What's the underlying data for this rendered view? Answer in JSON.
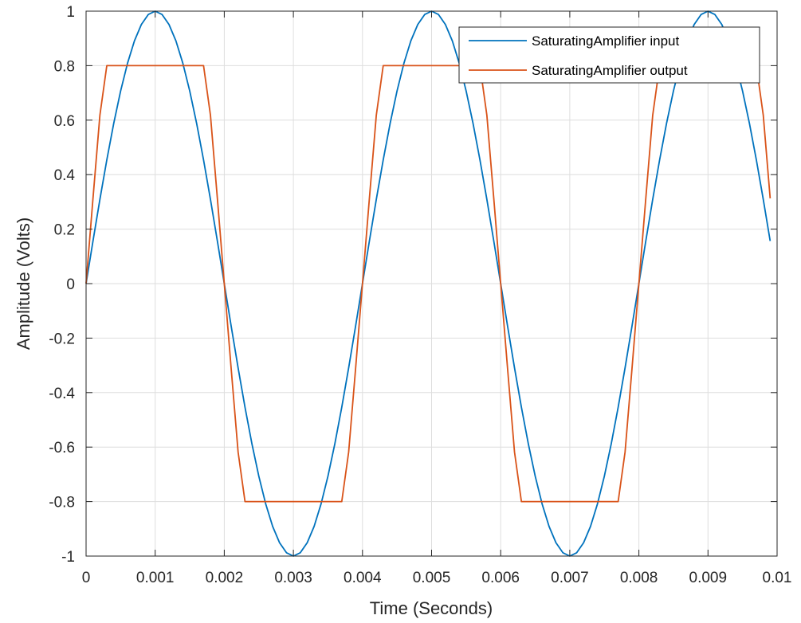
{
  "chart_data": {
    "type": "line",
    "title": "",
    "xlabel": "Time (Seconds)",
    "ylabel": "Amplitude (Volts)",
    "xlim": [
      0,
      0.01
    ],
    "ylim": [
      -1,
      1
    ],
    "grid": true,
    "legend_position": "top-right",
    "x_ticks": [
      "0",
      "0.001",
      "0.002",
      "0.003",
      "0.004",
      "0.005",
      "0.006",
      "0.007",
      "0.008",
      "0.009",
      "0.01"
    ],
    "y_ticks": [
      "-1",
      "-0.8",
      "-0.6",
      "-0.4",
      "-0.2",
      "0",
      "0.2",
      "0.4",
      "0.6",
      "0.8",
      "1"
    ],
    "x": {
      "start": 0,
      "end": 0.0099,
      "step": 0.0001
    },
    "series": [
      {
        "name": "SaturatingAmplifier input",
        "color": "#0072BD",
        "function": "sine",
        "amplitude": 1,
        "frequency_hz": 250
      },
      {
        "name": "SaturatingAmplifier output",
        "color": "#D95319",
        "function": "saturated sine",
        "gain": 2,
        "saturation_level": 0.8
      }
    ]
  }
}
